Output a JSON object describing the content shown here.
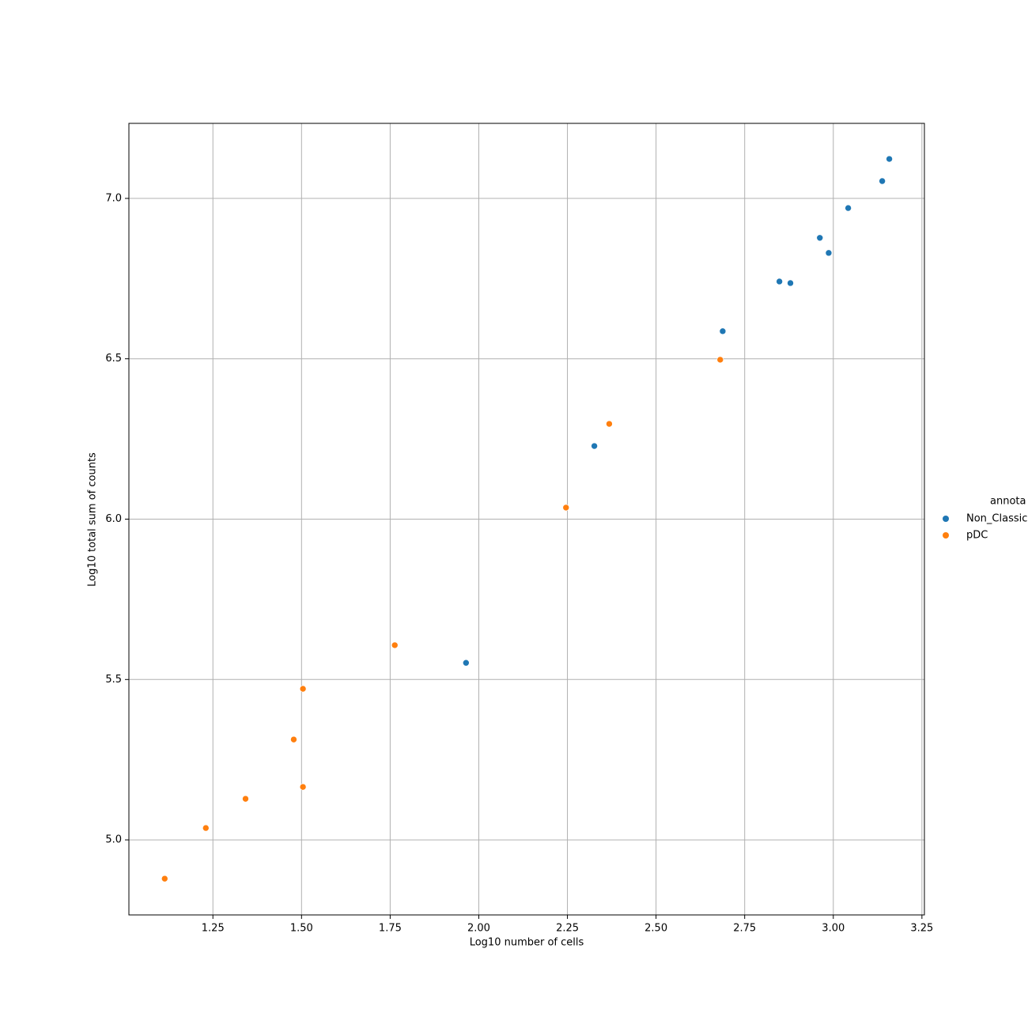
{
  "chart_data": {
    "type": "scatter",
    "x_label": "Log10 number of cells",
    "y_label": "Log10 total sum of counts",
    "legend_title": "annota",
    "legend": "right",
    "grid": true,
    "xlim": [
      1.013,
      3.257
    ],
    "ylim": [
      4.766,
      7.234
    ],
    "xticks": [
      1.25,
      {
        "value": 1.5,
        "label": "1.50"
      },
      1.75,
      {
        "value": 2.0,
        "label": "2.00"
      },
      2.25,
      {
        "value": 2.5,
        "label": "2.50"
      },
      2.75,
      {
        "value": 3.0,
        "label": "3.00"
      },
      3.25
    ],
    "yticks": [
      {
        "value": 5.0,
        "label": "5.0"
      },
      5.5,
      {
        "value": 6.0,
        "label": "6.0"
      },
      6.5,
      {
        "value": 7.0,
        "label": "7.0"
      }
    ],
    "series": [
      {
        "name": "Non_Classic",
        "color": "#1f77b4",
        "x": [
          1.964,
          2.326,
          2.688,
          2.848,
          2.879,
          2.962,
          2.987,
          3.042,
          3.138,
          3.158
        ],
        "values": [
          5.552,
          6.228,
          6.586,
          6.741,
          6.736,
          6.877,
          6.83,
          6.97,
          7.054,
          7.123
        ]
      },
      {
        "name": "pDC",
        "color": "#ff7f0e",
        "x": [
          1.114,
          1.23,
          1.342,
          1.478,
          1.504,
          1.504,
          1.763,
          2.246,
          2.368,
          2.681
        ],
        "values": [
          4.879,
          5.037,
          5.128,
          5.313,
          5.471,
          5.165,
          5.607,
          6.036,
          6.297,
          6.497
        ]
      }
    ]
  }
}
